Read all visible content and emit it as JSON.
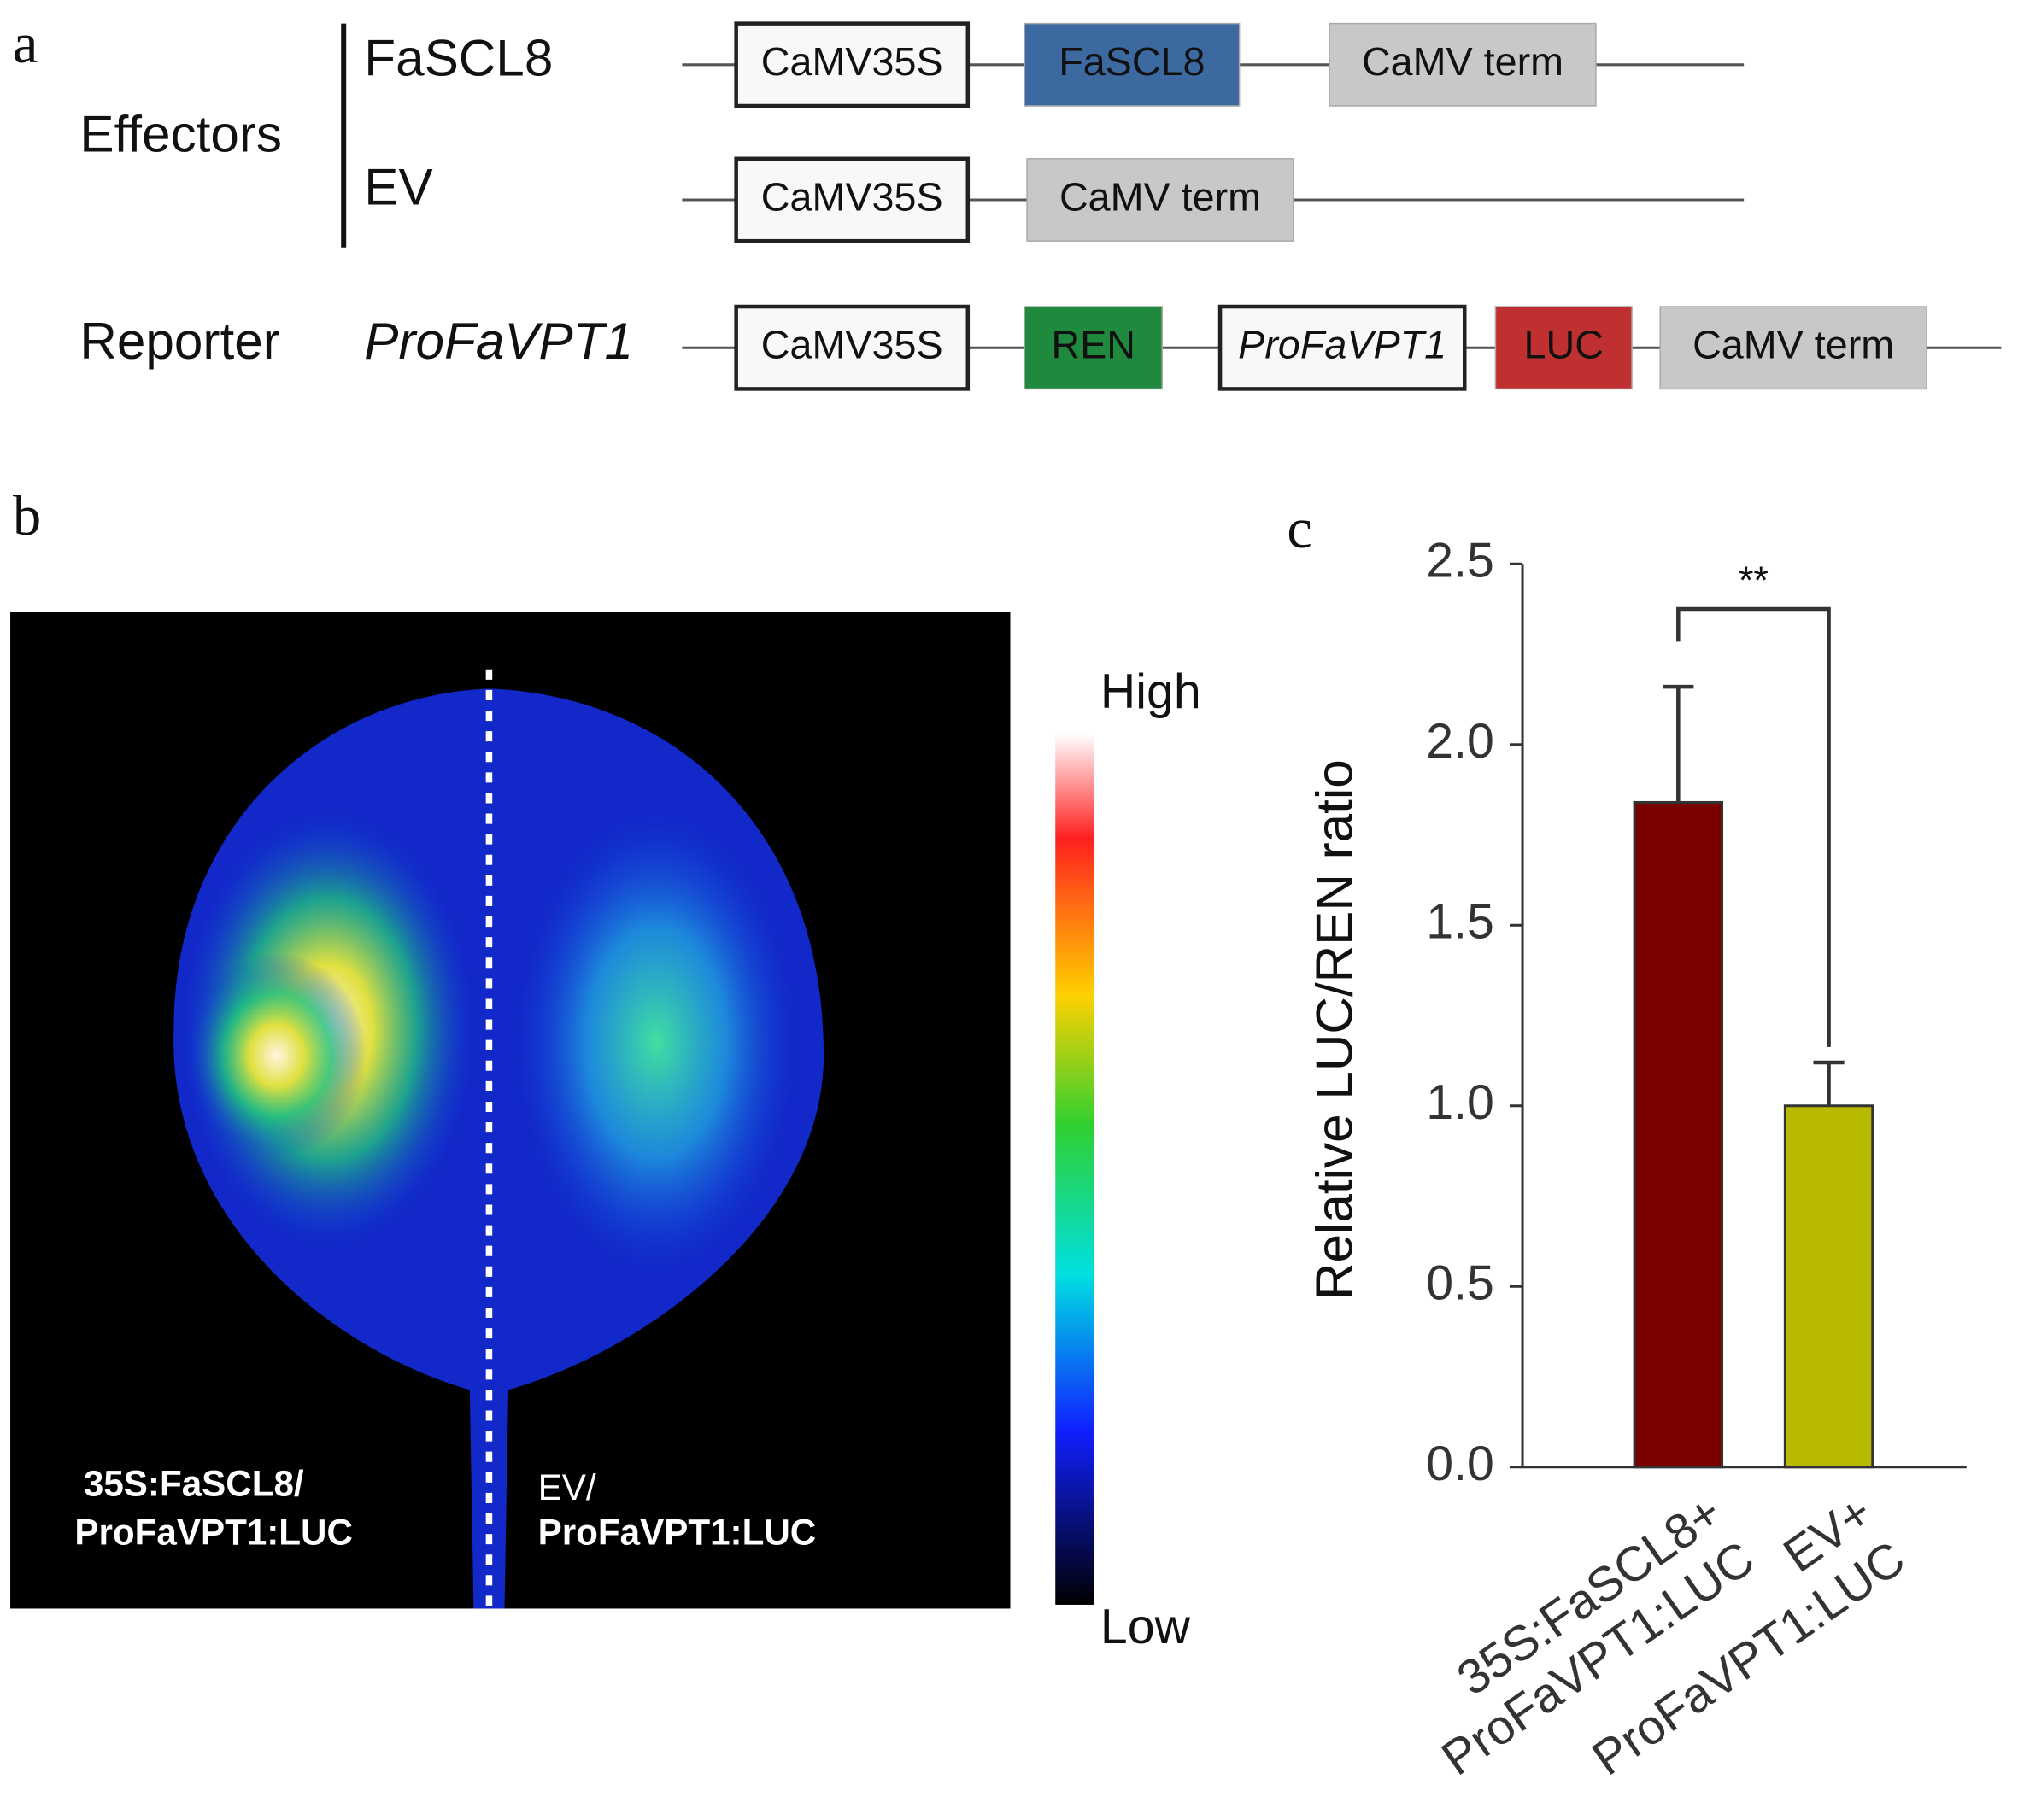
{
  "panel_a": {
    "letter": "a",
    "group_label": "Effectors",
    "reporter_label": "Reporter",
    "constructs": [
      {
        "name": "FaSCL8",
        "elements": [
          {
            "label": "CaMV35S",
            "color": "#f8f8f8"
          },
          {
            "label": "FaSCL8",
            "color": "#3b69a0"
          },
          {
            "label": "CaMV term",
            "color": "#c8c8c8"
          }
        ]
      },
      {
        "name": "EV",
        "elements": [
          {
            "label": "CaMV35S",
            "color": "#f8f8f8"
          },
          {
            "label": "CaMV term",
            "color": "#c8c8c8"
          }
        ]
      },
      {
        "name": "ProFaVPT1",
        "elements": [
          {
            "label": "CaMV35S",
            "color": "#f8f8f8"
          },
          {
            "label": "REN",
            "color": "#1f8a3d"
          },
          {
            "label": "ProFaVPT1",
            "color": "#f8f8f8"
          },
          {
            "label": "LUC",
            "color": "#c03030"
          },
          {
            "label": "CaMV term",
            "color": "#c8c8c8"
          }
        ]
      }
    ]
  },
  "panel_b": {
    "letter": "b",
    "left_label": [
      "35S:FaSCL8/",
      "ProFaVPT1:LUC"
    ],
    "right_label": [
      "EV/",
      "ProFaVPT1:LUC"
    ],
    "scale_high": "High",
    "scale_low": "Low"
  },
  "chart_data": {
    "type": "bar",
    "letter": "c",
    "ylabel": "Relative LUC/REN ratio",
    "categories": [
      [
        "35S:FaSCL8+",
        "ProFaVPT1:LUC"
      ],
      [
        "EV+",
        "ProFaVPT1:LUC"
      ]
    ],
    "values": [
      1.84,
      1.0
    ],
    "errors": [
      0.32,
      0.12
    ],
    "colors": [
      "#7a0000",
      "#b8ba00"
    ],
    "ylim": [
      0,
      2.5
    ],
    "yticks": [
      {
        "value": 0,
        "label": "0.0"
      },
      0.5,
      {
        "value": 1,
        "label": "1.0"
      },
      1.5,
      {
        "value": 2,
        "label": "2.0"
      },
      2.5
    ],
    "annotation": "**"
  }
}
